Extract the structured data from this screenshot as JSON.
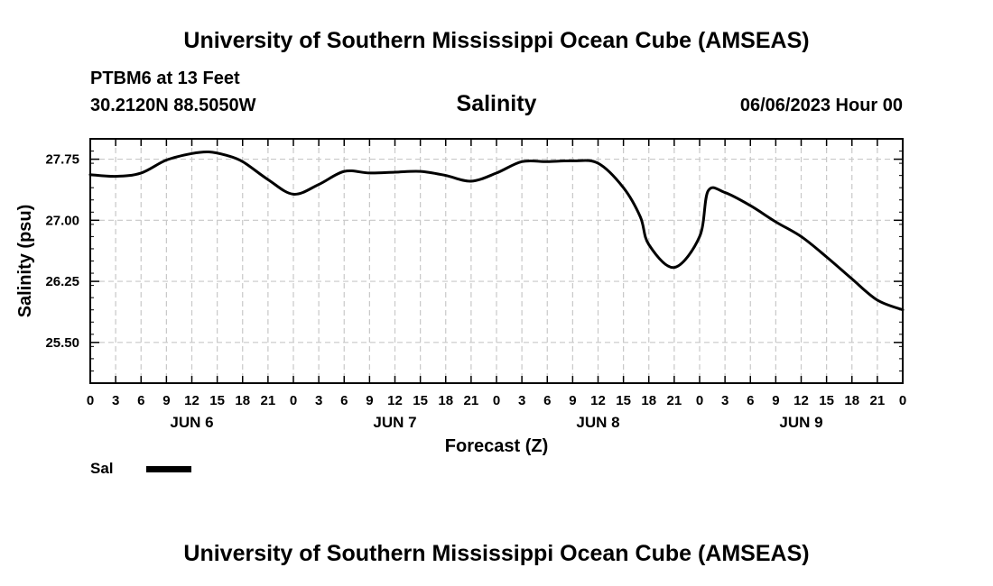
{
  "header": {
    "title": "University of Southern Mississippi Ocean Cube (AMSEAS)",
    "station": "PTBM6 at 13 Feet",
    "coords": "30.2120N  88.5050W",
    "variable": "Salinity",
    "datetime": "06/06/2023 Hour 00"
  },
  "footer": {
    "title": "University of Southern Mississippi Ocean Cube (AMSEAS)"
  },
  "legend": {
    "label": "Sal"
  },
  "colors": {
    "line": "#000000",
    "grid": "#c8c8c8",
    "axis": "#000000"
  },
  "chart_data": {
    "type": "line",
    "title": "Salinity",
    "xlabel": "Forecast (Z)",
    "ylabel": "Salinity (psu)",
    "xlim": [
      0,
      96
    ],
    "ylim": [
      25.0,
      28.0
    ],
    "grid": true,
    "x_ticks": [
      0,
      3,
      6,
      9,
      12,
      15,
      18,
      21,
      24,
      27,
      30,
      33,
      36,
      39,
      42,
      45,
      48,
      51,
      54,
      57,
      60,
      63,
      66,
      69,
      72,
      75,
      78,
      81,
      84,
      87,
      90,
      93,
      96
    ],
    "x_tick_labels": [
      "0",
      "3",
      "6",
      "9",
      "12",
      "15",
      "18",
      "21",
      "0",
      "3",
      "6",
      "9",
      "12",
      "15",
      "18",
      "21",
      "0",
      "3",
      "6",
      "9",
      "12",
      "15",
      "18",
      "21",
      "0",
      "3",
      "6",
      "9",
      "12",
      "15",
      "18",
      "21",
      "0"
    ],
    "y_ticks": [
      25.5,
      26.25,
      27.0,
      27.75
    ],
    "y_tick_labels": [
      "25.50",
      "26.25",
      "27.00",
      "27.75"
    ],
    "day_labels": [
      {
        "x": 12,
        "label": "JUN 6"
      },
      {
        "x": 36,
        "label": "JUN 7"
      },
      {
        "x": 60,
        "label": "JUN 8"
      },
      {
        "x": 84,
        "label": "JUN 9"
      }
    ],
    "series": [
      {
        "name": "Sal",
        "x": [
          0,
          3,
          6,
          9,
          12,
          14,
          16,
          18,
          21,
          24,
          27,
          30,
          33,
          36,
          39,
          42,
          45,
          48,
          51,
          54,
          57,
          60,
          63,
          65,
          66,
          69,
          72,
          73,
          75,
          78,
          81,
          84,
          87,
          90,
          93,
          96
        ],
        "values": [
          27.56,
          27.54,
          27.58,
          27.74,
          27.82,
          27.84,
          27.8,
          27.72,
          27.5,
          27.32,
          27.44,
          27.6,
          27.58,
          27.59,
          27.6,
          27.55,
          27.48,
          27.58,
          27.72,
          27.72,
          27.73,
          27.7,
          27.4,
          27.04,
          26.7,
          26.42,
          26.8,
          27.36,
          27.34,
          27.18,
          26.98,
          26.8,
          26.55,
          26.28,
          26.02,
          25.9
        ]
      }
    ]
  }
}
